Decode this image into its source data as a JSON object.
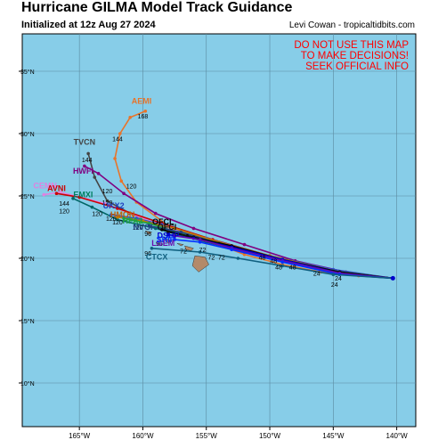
{
  "header": {
    "title": "Hurricane GILMA Model Track Guidance",
    "initialized": "Initialized at 12z Aug 27 2024",
    "credit": "Levi Cowan - tropicaltidbits.com"
  },
  "warning": {
    "lines": [
      "DO NOT USE THIS MAP",
      "TO MAKE DECISIONS!",
      "SEEK OFFICIAL INFO"
    ],
    "color": "#ff0000"
  },
  "map": {
    "ocean_color": "#87cde8",
    "land_color": "#b38a6a",
    "grid": true,
    "lon_range": [
      -169.5,
      -138.5
    ],
    "lat_range": [
      6.5,
      38.0
    ],
    "lon_ticks": [
      -165,
      -160,
      -155,
      -150,
      -145,
      -140
    ],
    "lat_ticks": [
      10,
      15,
      20,
      25,
      30,
      35
    ],
    "lon_tick_labels": [
      "165°W",
      "160°W",
      "155°W",
      "150°W",
      "145°W",
      "140°W"
    ],
    "lat_tick_labels": [
      "10°N",
      "15°N",
      "20°N",
      "25°N",
      "30°N",
      "35°N"
    ]
  },
  "chart_data": {
    "type": "map-tracks",
    "origin": {
      "lon": -140.3,
      "lat": 18.4
    },
    "tracks": [
      {
        "name": "AEMI",
        "color": "#e8742a",
        "points": [
          [
            -140.3,
            18.4
          ],
          [
            -143,
            18.6
          ],
          [
            -146,
            18.9
          ],
          [
            -149,
            19.5
          ],
          [
            -152,
            20.3
          ],
          [
            -155,
            21.5
          ],
          [
            -158,
            22.6
          ],
          [
            -160.5,
            24.5
          ],
          [
            -161.7,
            26.2
          ],
          [
            -162.2,
            28.0
          ],
          [
            -161.8,
            30.0
          ],
          [
            -161,
            31.3
          ],
          [
            -159.8,
            31.8
          ]
        ],
        "label": [
          -160.1,
          32.4
        ],
        "label_color": "#e8742a"
      },
      {
        "name": "TVCN",
        "color": "#444444",
        "points": [
          [
            -140.3,
            18.4
          ],
          [
            -144,
            18.8
          ],
          [
            -148,
            19.5
          ],
          [
            -152,
            20.5
          ],
          [
            -155.5,
            21.5
          ],
          [
            -158.5,
            22.5
          ],
          [
            -161,
            23.6
          ],
          [
            -162.8,
            24.6
          ],
          [
            -163.8,
            26.5
          ],
          [
            -164.3,
            28.4
          ]
        ],
        "label": [
          -164.6,
          29.1
        ],
        "label_color": "#444444"
      },
      {
        "name": "HWFI",
        "color": "#800080",
        "points": [
          [
            -140.3,
            18.4
          ],
          [
            -144,
            18.9
          ],
          [
            -148,
            19.8
          ],
          [
            -152,
            21.1
          ],
          [
            -156,
            22.4
          ],
          [
            -159,
            23.6
          ],
          [
            -161.5,
            25.2
          ],
          [
            -163.5,
            26.8
          ],
          [
            -164.6,
            27.4
          ]
        ],
        "label": [
          -164.7,
          26.8
        ],
        "label_color": "#800080"
      },
      {
        "name": "CEMN",
        "color": "#e080e0",
        "points": [
          [
            -140.3,
            18.4
          ],
          [
            -145,
            19.0
          ],
          [
            -150,
            20.0
          ],
          [
            -155,
            21.4
          ],
          [
            -159,
            22.8
          ],
          [
            -163,
            24.4
          ],
          [
            -166.5,
            25.3
          ],
          [
            -167.8,
            25.1
          ]
        ],
        "label": [
          -167.7,
          25.6
        ],
        "label_color": "#e080e0"
      },
      {
        "name": "AVNI",
        "color": "#cc0000",
        "points": [
          [
            -140.3,
            18.4
          ],
          [
            -145,
            19.0
          ],
          [
            -150,
            20.2
          ],
          [
            -154.5,
            21.5
          ],
          [
            -158.5,
            22.8
          ],
          [
            -162,
            24.0
          ],
          [
            -165,
            24.9
          ],
          [
            -166.8,
            25.2
          ]
        ],
        "label": [
          -166.8,
          25.4
        ],
        "label_color": "#cc0000"
      },
      {
        "name": "EMXI",
        "color": "#006666",
        "points": [
          [
            -140.3,
            18.4
          ],
          [
            -145,
            19.0
          ],
          [
            -150,
            20.1
          ],
          [
            -155,
            21.3
          ],
          [
            -159,
            22.4
          ],
          [
            -162,
            23.1
          ],
          [
            -164,
            24.1
          ],
          [
            -165.5,
            24.8
          ]
        ],
        "label": [
          -164.7,
          24.9
        ],
        "label_color": "#008060"
      },
      {
        "name": "UKX2",
        "color": "#3050d0",
        "points": [
          [
            -140.3,
            18.4
          ],
          [
            -145,
            19.1
          ],
          [
            -150,
            20.2
          ],
          [
            -155,
            21.6
          ],
          [
            -158.5,
            22.7
          ],
          [
            -160.5,
            23.2
          ],
          [
            -162.5,
            23.5
          ]
        ],
        "label": [
          -162.3,
          24.0
        ],
        "label_color": "#2040c0"
      },
      {
        "name": "HMON",
        "color": "#c08000",
        "points": [
          [
            -140.3,
            18.4
          ],
          [
            -145,
            19.0
          ],
          [
            -150,
            20.2
          ],
          [
            -154,
            21.3
          ],
          [
            -157.5,
            22.4
          ],
          [
            -160,
            23.0
          ],
          [
            -162,
            23.3
          ]
        ],
        "label": [
          -161.6,
          23.3
        ],
        "label_color": "#c06000"
      },
      {
        "name": "HFA2",
        "color": "#20a040",
        "points": [
          [
            -140.3,
            18.4
          ],
          [
            -145,
            19.0
          ],
          [
            -150,
            20.1
          ],
          [
            -154,
            21.2
          ],
          [
            -157,
            22.0
          ],
          [
            -159.5,
            22.8
          ],
          [
            -161.5,
            23.2
          ]
        ],
        "label": [
          -160.8,
          22.8
        ],
        "label_color": "#20a040"
      },
      {
        "name": "NVGI",
        "color": "#204080",
        "points": [
          [
            -140.3,
            18.4
          ],
          [
            -145,
            19.0
          ],
          [
            -150,
            20.1
          ],
          [
            -154,
            21.2
          ],
          [
            -157,
            22.1
          ],
          [
            -159.5,
            22.6
          ]
        ],
        "label": [
          -160.0,
          22.3
        ],
        "label_color": "#204080"
      },
      {
        "name": "OFCL",
        "color": "#000000",
        "points": [
          [
            -140.3,
            18.4
          ],
          [
            -144.5,
            18.9
          ],
          [
            -149,
            19.9
          ],
          [
            -153,
            21.0
          ],
          [
            -156.5,
            21.8
          ],
          [
            -158.5,
            22.3
          ]
        ],
        "label": [
          -158.4,
          22.7
        ],
        "label_color": "#000000"
      },
      {
        "name": "OFCI",
        "color": "#111111",
        "points": [
          [
            -140.3,
            18.4
          ],
          [
            -144.5,
            18.9
          ],
          [
            -149,
            19.8
          ],
          [
            -153,
            20.9
          ],
          [
            -156,
            21.7
          ],
          [
            -158,
            22.1
          ]
        ],
        "label": [
          -158.1,
          22.3
        ],
        "label_color": "#111111"
      },
      {
        "name": "DSHP",
        "color": "#0000cc",
        "points": [
          [
            -140.3,
            18.4
          ],
          [
            -144.5,
            18.8
          ],
          [
            -149,
            19.9
          ],
          [
            -153,
            20.9
          ],
          [
            -156,
            21.6
          ],
          [
            -158,
            21.9
          ]
        ],
        "label": [
          -158.0,
          21.6
        ],
        "label_color": "#0000cc"
      },
      {
        "name": "LGEM",
        "color": "#6a0dad",
        "points": [
          [
            -140.3,
            18.4
          ],
          [
            -144.5,
            18.8
          ],
          [
            -149,
            19.8
          ],
          [
            -153,
            20.8
          ],
          [
            -155.5,
            21.5
          ],
          [
            -157.5,
            21.8
          ]
        ],
        "label": [
          -158.4,
          21.0
        ],
        "label_color": "#6a0dad"
      },
      {
        "name": "SHIP",
        "color": "#0030ff",
        "points": [
          [
            -140.3,
            18.4
          ],
          [
            -144.5,
            18.7
          ],
          [
            -149,
            19.7
          ],
          [
            -153,
            20.7
          ],
          [
            -155.5,
            21.3
          ],
          [
            -157.5,
            21.5
          ]
        ],
        "label": [
          -158.2,
          21.3
        ],
        "label_color": "#0030ff"
      },
      {
        "name": "CTCX",
        "color": "#106080",
        "points": [
          [
            -140.3,
            18.4
          ],
          [
            -145,
            18.7
          ],
          [
            -149,
            19.4
          ],
          [
            -152.5,
            20.0
          ],
          [
            -155.5,
            20.5
          ],
          [
            -159.3,
            20.8
          ]
        ],
        "label": [
          -158.9,
          19.9
        ],
        "label_color": "#106080"
      }
    ],
    "hour_labels": [
      {
        "text": "168",
        "at": [
          -160.0,
          31.2
        ]
      },
      {
        "text": "144",
        "at": [
          -162.0,
          29.4
        ]
      },
      {
        "text": "144",
        "at": [
          -164.4,
          27.7
        ]
      },
      {
        "text": "120",
        "at": [
          -160.9,
          25.6
        ]
      },
      {
        "text": "120",
        "at": [
          -162.8,
          25.2
        ]
      },
      {
        "text": "144",
        "at": [
          -166.2,
          24.2
        ]
      },
      {
        "text": "120",
        "at": [
          -166.2,
          23.6
        ]
      },
      {
        "text": "120",
        "at": [
          -162.8,
          24.3
        ]
      },
      {
        "text": "120",
        "at": [
          -162.5,
          23.0
        ]
      },
      {
        "text": "120",
        "at": [
          -163.6,
          23.4
        ]
      },
      {
        "text": "120",
        "at": [
          -162.0,
          22.7
        ]
      },
      {
        "text": "120",
        "at": [
          -160.4,
          22.3
        ]
      },
      {
        "text": "96",
        "at": [
          -159.6,
          21.8
        ]
      },
      {
        "text": "96",
        "at": [
          -158.7,
          21.0
        ]
      },
      {
        "text": "96",
        "at": [
          -159.6,
          20.2
        ]
      },
      {
        "text": "72",
        "at": [
          -155.3,
          20.5
        ]
      },
      {
        "text": "72",
        "at": [
          -154.6,
          19.9
        ]
      },
      {
        "text": "72",
        "at": [
          -153.8,
          19.9
        ]
      },
      {
        "text": "72",
        "at": [
          -156.8,
          20.4
        ]
      },
      {
        "text": "48",
        "at": [
          -150.6,
          19.9
        ]
      },
      {
        "text": "48",
        "at": [
          -149.7,
          19.6
        ]
      },
      {
        "text": "48",
        "at": [
          -149.3,
          19.1
        ]
      },
      {
        "text": "48",
        "at": [
          -148.2,
          19.1
        ]
      },
      {
        "text": "24",
        "at": [
          -146.3,
          18.6
        ]
      },
      {
        "text": "24",
        "at": [
          -144.6,
          18.2
        ]
      },
      {
        "text": "24",
        "at": [
          -144.9,
          17.7
        ]
      }
    ]
  }
}
